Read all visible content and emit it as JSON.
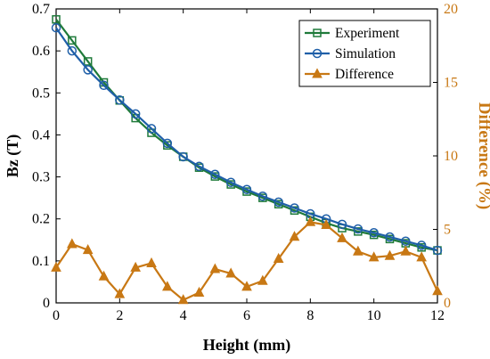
{
  "chart_data": {
    "type": "line",
    "xlabel": "Height (mm)",
    "ylabel": "Bz (T)",
    "y2label": "Difference (%)",
    "xlim": [
      0,
      12
    ],
    "ylim": [
      0,
      0.7
    ],
    "y2lim": [
      0,
      20
    ],
    "xticks": [
      "0",
      "2",
      "4",
      "6",
      "8",
      "10",
      "12"
    ],
    "yticks": [
      "0",
      "0.1",
      "0.2",
      "0.3",
      "0.4",
      "0.5",
      "0.6",
      "0.7"
    ],
    "y2ticks": [
      "0",
      "5",
      "10",
      "15",
      "20"
    ],
    "grid": false,
    "legend_position": "top-right",
    "x": [
      0,
      0.5,
      1,
      1.5,
      2,
      2.5,
      3,
      3.5,
      4,
      4.5,
      5,
      5.5,
      6,
      6.5,
      7,
      7.5,
      8,
      8.5,
      9,
      9.5,
      10,
      10.5,
      11,
      11.5,
      12
    ],
    "series": [
      {
        "name": "Experiment",
        "axis": "left",
        "color": "#1f7a3a",
        "marker": "square",
        "values": [
          0.675,
          0.625,
          0.575,
          0.525,
          0.482,
          0.44,
          0.405,
          0.375,
          0.348,
          0.322,
          0.301,
          0.282,
          0.265,
          0.25,
          0.235,
          0.22,
          0.205,
          0.19,
          0.178,
          0.17,
          0.162,
          0.152,
          0.142,
          0.132,
          0.125
        ]
      },
      {
        "name": "Simulation",
        "axis": "left",
        "color": "#1f5fa8",
        "marker": "circle",
        "values": [
          0.655,
          0.6,
          0.555,
          0.518,
          0.483,
          0.45,
          0.415,
          0.38,
          0.348,
          0.325,
          0.306,
          0.287,
          0.27,
          0.254,
          0.24,
          0.226,
          0.212,
          0.2,
          0.187,
          0.176,
          0.167,
          0.157,
          0.147,
          0.137,
          0.125
        ]
      },
      {
        "name": "Difference",
        "axis": "right",
        "color": "#c87814",
        "marker": "triangle",
        "values": [
          2.4,
          4.0,
          3.6,
          1.8,
          0.6,
          2.4,
          2.7,
          1.1,
          0.2,
          0.7,
          2.3,
          2.0,
          1.1,
          1.5,
          3.0,
          4.5,
          5.5,
          5.3,
          4.4,
          3.5,
          3.1,
          3.2,
          3.5,
          3.1,
          0.8
        ]
      }
    ]
  }
}
